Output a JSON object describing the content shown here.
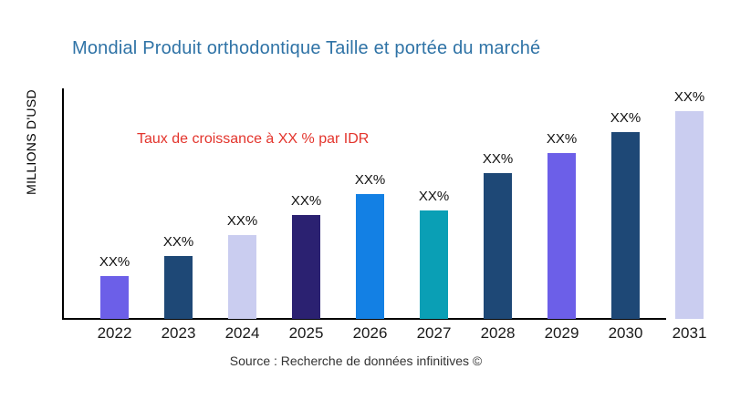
{
  "title": "Mondial Produit orthodontique Taille et portée du marché",
  "annotation": "Taux de croissance à XX % par IDR",
  "y_axis_label": "MILLIONS D'USD",
  "source": "Source : Recherche de données infinitives ©",
  "colors": {
    "title": "#2F73A6",
    "annotation": "#E3342C",
    "axis": "#000000",
    "violet": "#6C5FE8",
    "steel_navy": "#1E4876",
    "lavender": "#CACDF0",
    "dark_indigo": "#2B2171",
    "bright_blue": "#1380E4",
    "teal": "#0A9FB5"
  },
  "chart_data": {
    "type": "bar",
    "title": "Mondial Produit orthodontique Taille et portée du marché",
    "xlabel": "",
    "ylabel": "MILLIONS D'USD",
    "grid": false,
    "legend": null,
    "categories": [
      "2022",
      "2023",
      "2024",
      "2025",
      "2026",
      "2027",
      "2028",
      "2029",
      "2030",
      "2031"
    ],
    "values": [
      47,
      69,
      92,
      114,
      137,
      119,
      160,
      182,
      205,
      228
    ],
    "value_labels": [
      "XX%",
      "XX%",
      "XX%",
      "XX%",
      "XX%",
      "XX%",
      "XX%",
      "XX%",
      "XX%",
      "XX%"
    ],
    "bar_colors": [
      "#6C5FE8",
      "#1E4876",
      "#CACDF0",
      "#2B2171",
      "#1380E4",
      "#0A9FB5",
      "#1E4876",
      "#6C5FE8",
      "#1E4876",
      "#CACDF0"
    ],
    "annotations": [
      "Taux de croissance à XX % par IDR"
    ]
  }
}
